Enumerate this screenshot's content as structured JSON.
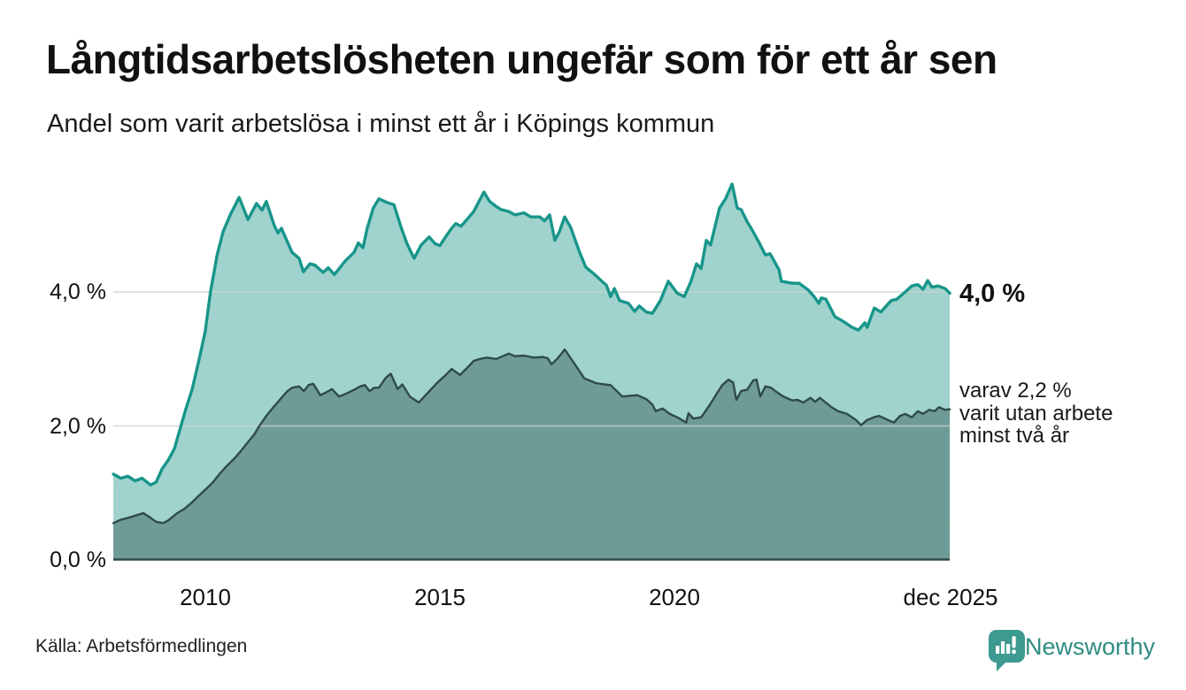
{
  "colors": {
    "background": "#ffffff",
    "text": "#111111",
    "gridline": "#c9d2d1",
    "baseline": "#2e4b47",
    "brand_teal": "#2f8c82",
    "logo_bubble": "#3d9a90"
  },
  "chart_data": {
    "type": "area",
    "title": "Långtidsarbetslösheten ungefär som för ett år sen",
    "subtitle": "Andel som varit arbetslösa i minst ett år i Köpings kommun",
    "unit": "%",
    "grid": "horizontal-only",
    "x_axis": {
      "range_years": [
        2008.04,
        2025.87
      ],
      "ticks": [
        {
          "label": "2010",
          "year": 2010
        },
        {
          "label": "2015",
          "year": 2015
        },
        {
          "label": "2020",
          "year": 2020
        },
        {
          "label": "dec 2025",
          "year": 2025.9
        }
      ]
    },
    "y_axis": {
      "range": [
        0,
        6
      ],
      "ticks": [
        {
          "label": "4,0 %",
          "value": 4
        },
        {
          "label": "2,0 %",
          "value": 2
        },
        {
          "label": "0,0 %",
          "value": 0
        }
      ]
    },
    "series": [
      {
        "id": "unemployed_min_one_year",
        "line_color": "#18958a",
        "fill_color": "#a0d3cd",
        "line_width": 3.4,
        "points": [
          [
            2008.04,
            1.28
          ],
          [
            2008.2,
            1.22
          ],
          [
            2008.35,
            1.25
          ],
          [
            2008.5,
            1.18
          ],
          [
            2008.65,
            1.22
          ],
          [
            2008.83,
            1.12
          ],
          [
            2008.95,
            1.16
          ],
          [
            2009.08,
            1.36
          ],
          [
            2009.21,
            1.49
          ],
          [
            2009.34,
            1.66
          ],
          [
            2009.45,
            1.93
          ],
          [
            2009.58,
            2.24
          ],
          [
            2009.72,
            2.55
          ],
          [
            2009.87,
            3.0
          ],
          [
            2010.0,
            3.42
          ],
          [
            2010.11,
            4.0
          ],
          [
            2010.25,
            4.55
          ],
          [
            2010.38,
            4.9
          ],
          [
            2010.53,
            5.15
          ],
          [
            2010.72,
            5.41
          ],
          [
            2010.91,
            5.08
          ],
          [
            2011.09,
            5.32
          ],
          [
            2011.21,
            5.22
          ],
          [
            2011.3,
            5.35
          ],
          [
            2011.47,
            4.99
          ],
          [
            2011.55,
            4.88
          ],
          [
            2011.62,
            4.95
          ],
          [
            2011.85,
            4.59
          ],
          [
            2012.0,
            4.5
          ],
          [
            2012.09,
            4.3
          ],
          [
            2012.23,
            4.42
          ],
          [
            2012.34,
            4.4
          ],
          [
            2012.51,
            4.29
          ],
          [
            2012.62,
            4.36
          ],
          [
            2012.75,
            4.26
          ],
          [
            2012.98,
            4.46
          ],
          [
            2013.17,
            4.59
          ],
          [
            2013.26,
            4.73
          ],
          [
            2013.36,
            4.66
          ],
          [
            2013.45,
            4.95
          ],
          [
            2013.58,
            5.25
          ],
          [
            2013.7,
            5.39
          ],
          [
            2013.89,
            5.33
          ],
          [
            2014.02,
            5.3
          ],
          [
            2014.18,
            4.95
          ],
          [
            2014.3,
            4.72
          ],
          [
            2014.45,
            4.5
          ],
          [
            2014.6,
            4.7
          ],
          [
            2014.77,
            4.82
          ],
          [
            2014.9,
            4.72
          ],
          [
            2015.0,
            4.69
          ],
          [
            2015.13,
            4.83
          ],
          [
            2015.25,
            4.95
          ],
          [
            2015.34,
            5.02
          ],
          [
            2015.45,
            4.98
          ],
          [
            2015.6,
            5.1
          ],
          [
            2015.72,
            5.2
          ],
          [
            2015.94,
            5.49
          ],
          [
            2016.06,
            5.35
          ],
          [
            2016.19,
            5.28
          ],
          [
            2016.3,
            5.23
          ],
          [
            2016.47,
            5.2
          ],
          [
            2016.6,
            5.15
          ],
          [
            2016.79,
            5.18
          ],
          [
            2016.94,
            5.12
          ],
          [
            2017.13,
            5.12
          ],
          [
            2017.23,
            5.06
          ],
          [
            2017.34,
            5.15
          ],
          [
            2017.45,
            4.77
          ],
          [
            2017.55,
            4.9
          ],
          [
            2017.66,
            5.12
          ],
          [
            2017.79,
            4.96
          ],
          [
            2017.98,
            4.59
          ],
          [
            2018.11,
            4.37
          ],
          [
            2018.3,
            4.26
          ],
          [
            2018.45,
            4.16
          ],
          [
            2018.55,
            4.1
          ],
          [
            2018.64,
            3.93
          ],
          [
            2018.72,
            4.05
          ],
          [
            2018.83,
            3.87
          ],
          [
            2019.02,
            3.83
          ],
          [
            2019.15,
            3.71
          ],
          [
            2019.25,
            3.79
          ],
          [
            2019.4,
            3.7
          ],
          [
            2019.53,
            3.68
          ],
          [
            2019.7,
            3.87
          ],
          [
            2019.87,
            4.16
          ],
          [
            2020.06,
            3.98
          ],
          [
            2020.21,
            3.93
          ],
          [
            2020.35,
            4.15
          ],
          [
            2020.47,
            4.42
          ],
          [
            2020.57,
            4.35
          ],
          [
            2020.68,
            4.77
          ],
          [
            2020.77,
            4.7
          ],
          [
            2020.96,
            5.25
          ],
          [
            2021.09,
            5.39
          ],
          [
            2021.23,
            5.61
          ],
          [
            2021.34,
            5.25
          ],
          [
            2021.42,
            5.23
          ],
          [
            2021.55,
            5.05
          ],
          [
            2021.66,
            4.92
          ],
          [
            2021.81,
            4.73
          ],
          [
            2021.94,
            4.55
          ],
          [
            2022.04,
            4.57
          ],
          [
            2022.23,
            4.33
          ],
          [
            2022.28,
            4.16
          ],
          [
            2022.51,
            4.13
          ],
          [
            2022.66,
            4.13
          ],
          [
            2022.85,
            4.03
          ],
          [
            2022.98,
            3.93
          ],
          [
            2023.08,
            3.83
          ],
          [
            2023.13,
            3.91
          ],
          [
            2023.23,
            3.89
          ],
          [
            2023.42,
            3.63
          ],
          [
            2023.6,
            3.56
          ],
          [
            2023.79,
            3.47
          ],
          [
            2023.92,
            3.43
          ],
          [
            2024.06,
            3.54
          ],
          [
            2024.11,
            3.47
          ],
          [
            2024.26,
            3.76
          ],
          [
            2024.4,
            3.7
          ],
          [
            2024.62,
            3.87
          ],
          [
            2024.74,
            3.89
          ],
          [
            2024.92,
            4.0
          ],
          [
            2025.06,
            4.09
          ],
          [
            2025.19,
            4.11
          ],
          [
            2025.3,
            4.04
          ],
          [
            2025.4,
            4.17
          ],
          [
            2025.49,
            4.07
          ],
          [
            2025.62,
            4.09
          ],
          [
            2025.77,
            4.05
          ],
          [
            2025.87,
            3.98
          ]
        ]
      },
      {
        "id": "unemployed_min_two_years",
        "line_color": "#2e4b47",
        "fill_color": "#6f9b96",
        "line_width": 2.4,
        "points": [
          [
            2008.04,
            0.55
          ],
          [
            2008.2,
            0.6
          ],
          [
            2008.36,
            0.63
          ],
          [
            2008.55,
            0.67
          ],
          [
            2008.68,
            0.7
          ],
          [
            2008.83,
            0.63
          ],
          [
            2008.95,
            0.57
          ],
          [
            2009.1,
            0.55
          ],
          [
            2009.21,
            0.59
          ],
          [
            2009.4,
            0.7
          ],
          [
            2009.55,
            0.76
          ],
          [
            2009.7,
            0.85
          ],
          [
            2009.85,
            0.95
          ],
          [
            2010.0,
            1.05
          ],
          [
            2010.15,
            1.15
          ],
          [
            2010.3,
            1.28
          ],
          [
            2010.45,
            1.4
          ],
          [
            2010.6,
            1.5
          ],
          [
            2010.75,
            1.62
          ],
          [
            2010.9,
            1.75
          ],
          [
            2011.05,
            1.88
          ],
          [
            2011.15,
            2.0
          ],
          [
            2011.3,
            2.15
          ],
          [
            2011.45,
            2.28
          ],
          [
            2011.6,
            2.4
          ],
          [
            2011.75,
            2.52
          ],
          [
            2011.85,
            2.57
          ],
          [
            2012.0,
            2.59
          ],
          [
            2012.1,
            2.52
          ],
          [
            2012.2,
            2.61
          ],
          [
            2012.3,
            2.63
          ],
          [
            2012.45,
            2.46
          ],
          [
            2012.6,
            2.51
          ],
          [
            2012.7,
            2.55
          ],
          [
            2012.85,
            2.44
          ],
          [
            2013.0,
            2.48
          ],
          [
            2013.2,
            2.55
          ],
          [
            2013.3,
            2.59
          ],
          [
            2013.4,
            2.61
          ],
          [
            2013.5,
            2.52
          ],
          [
            2013.6,
            2.57
          ],
          [
            2013.7,
            2.57
          ],
          [
            2013.85,
            2.72
          ],
          [
            2013.95,
            2.78
          ],
          [
            2014.1,
            2.55
          ],
          [
            2014.2,
            2.62
          ],
          [
            2014.36,
            2.44
          ],
          [
            2014.55,
            2.35
          ],
          [
            2014.75,
            2.5
          ],
          [
            2014.95,
            2.65
          ],
          [
            2015.11,
            2.75
          ],
          [
            2015.25,
            2.85
          ],
          [
            2015.43,
            2.76
          ],
          [
            2015.6,
            2.88
          ],
          [
            2015.72,
            2.97
          ],
          [
            2015.85,
            3.0
          ],
          [
            2016.0,
            3.02
          ],
          [
            2016.2,
            3.0
          ],
          [
            2016.47,
            3.08
          ],
          [
            2016.6,
            3.04
          ],
          [
            2016.8,
            3.05
          ],
          [
            2017.0,
            3.02
          ],
          [
            2017.2,
            3.03
          ],
          [
            2017.3,
            3.01
          ],
          [
            2017.38,
            2.92
          ],
          [
            2017.5,
            3.0
          ],
          [
            2017.66,
            3.14
          ],
          [
            2017.83,
            2.97
          ],
          [
            2018.08,
            2.71
          ],
          [
            2018.32,
            2.64
          ],
          [
            2018.5,
            2.62
          ],
          [
            2018.64,
            2.61
          ],
          [
            2018.89,
            2.44
          ],
          [
            2019.05,
            2.45
          ],
          [
            2019.21,
            2.46
          ],
          [
            2019.4,
            2.4
          ],
          [
            2019.53,
            2.32
          ],
          [
            2019.6,
            2.22
          ],
          [
            2019.75,
            2.26
          ],
          [
            2019.9,
            2.18
          ],
          [
            2020.06,
            2.13
          ],
          [
            2020.25,
            2.05
          ],
          [
            2020.3,
            2.19
          ],
          [
            2020.4,
            2.11
          ],
          [
            2020.57,
            2.13
          ],
          [
            2020.75,
            2.31
          ],
          [
            2020.9,
            2.48
          ],
          [
            2021.02,
            2.61
          ],
          [
            2021.15,
            2.69
          ],
          [
            2021.25,
            2.65
          ],
          [
            2021.32,
            2.39
          ],
          [
            2021.42,
            2.52
          ],
          [
            2021.55,
            2.54
          ],
          [
            2021.68,
            2.68
          ],
          [
            2021.75,
            2.69
          ],
          [
            2021.83,
            2.44
          ],
          [
            2021.94,
            2.59
          ],
          [
            2022.06,
            2.57
          ],
          [
            2022.15,
            2.52
          ],
          [
            2022.32,
            2.44
          ],
          [
            2022.51,
            2.38
          ],
          [
            2022.62,
            2.39
          ],
          [
            2022.75,
            2.35
          ],
          [
            2022.9,
            2.42
          ],
          [
            2023.0,
            2.36
          ],
          [
            2023.1,
            2.42
          ],
          [
            2023.35,
            2.28
          ],
          [
            2023.49,
            2.22
          ],
          [
            2023.68,
            2.18
          ],
          [
            2023.87,
            2.09
          ],
          [
            2023.98,
            2.01
          ],
          [
            2024.11,
            2.09
          ],
          [
            2024.25,
            2.13
          ],
          [
            2024.36,
            2.15
          ],
          [
            2024.55,
            2.09
          ],
          [
            2024.68,
            2.05
          ],
          [
            2024.81,
            2.15
          ],
          [
            2024.92,
            2.18
          ],
          [
            2025.06,
            2.13
          ],
          [
            2025.19,
            2.22
          ],
          [
            2025.3,
            2.18
          ],
          [
            2025.43,
            2.24
          ],
          [
            2025.55,
            2.22
          ],
          [
            2025.64,
            2.28
          ],
          [
            2025.77,
            2.24
          ],
          [
            2025.87,
            2.25
          ]
        ]
      }
    ],
    "annotations": {
      "latest_total": "4,0 %",
      "secondary_line1": "varav 2,2 %",
      "secondary_line2": "varit utan arbete",
      "secondary_line3": "minst två år"
    }
  },
  "footer": {
    "source": "Källa: Arbetsförmedlingen",
    "brand": "Newsworthy"
  }
}
